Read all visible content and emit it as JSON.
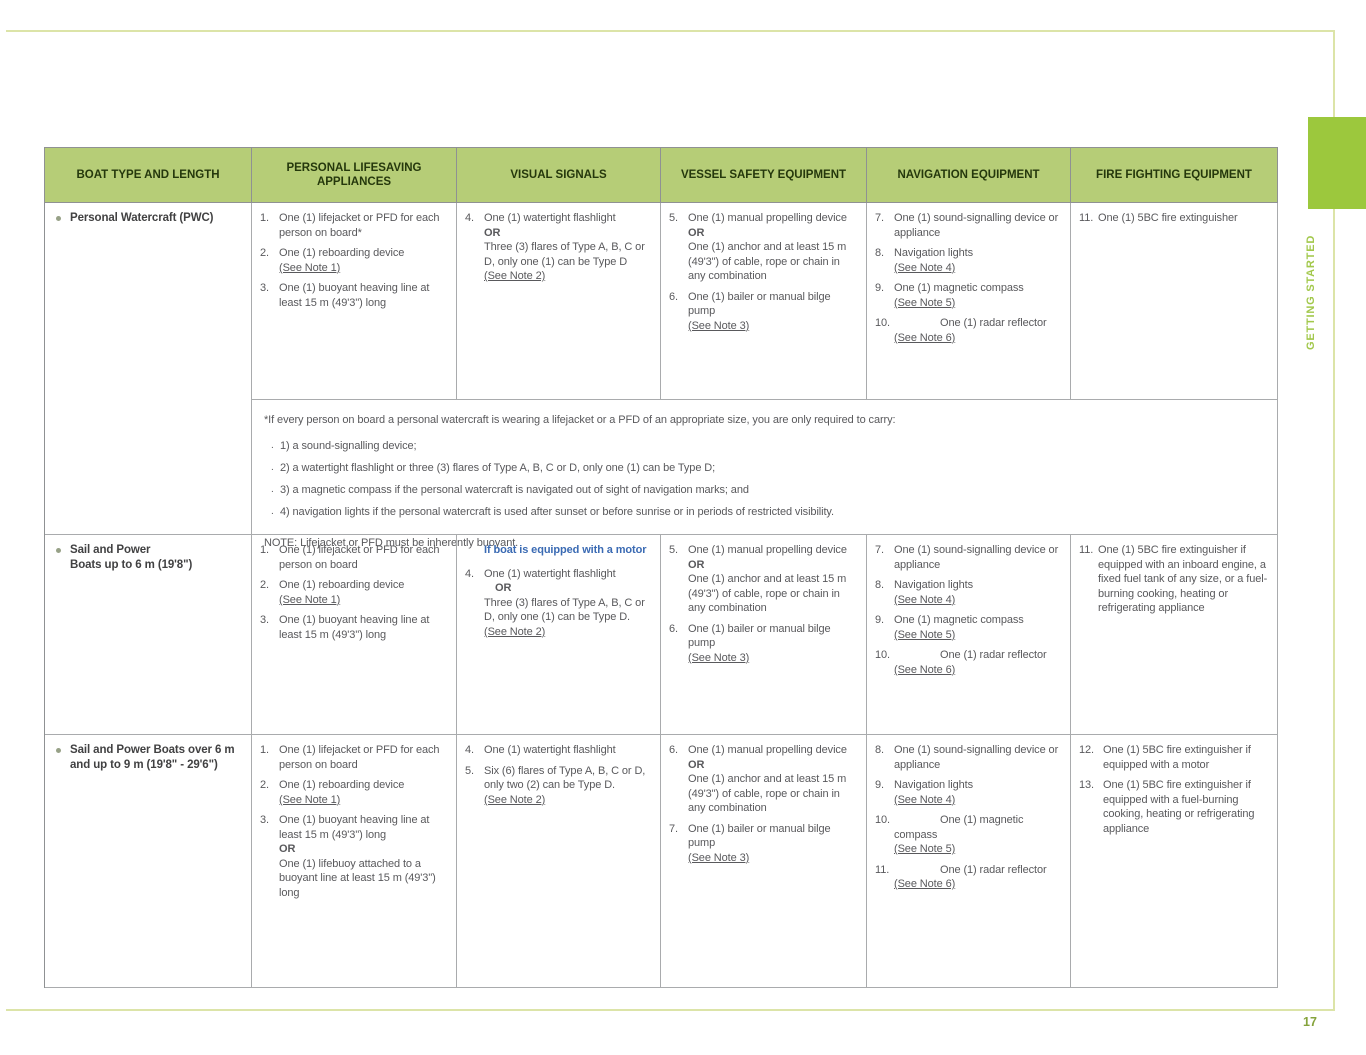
{
  "page": {
    "number": "17",
    "side_tab_label": "GETTING STARTED",
    "colors": {
      "accent_green": "#9cc83d",
      "pale_frame_line": "#dce4a8",
      "header_bg": "#b6cd77",
      "link_blue": "#3a6ab3",
      "body_text": "#59595c",
      "side_label_green": "#a2c84b"
    },
    "icons": {
      "bullet": "small-round-dot"
    }
  },
  "table": {
    "headers": [
      "BOAT TYPE AND LENGTH",
      "PERSONAL LIFESAVING APPLIANCES",
      "VISUAL SIGNALS",
      "VESSEL SAFETY EQUIPMENT",
      "NAVIGATION EQUIPMENT",
      "FIRE FIGHTING EQUIPMENT"
    ],
    "note": {
      "intro": "*If every person on board a personal watercraft is wearing a lifejacket or a PFD of an appropriate size, you are only required to carry:",
      "bullet_marker": ".",
      "bullets": [
        "1) a sound-signalling device;",
        "2) a watertight flashlight or three (3) flares of Type A, B, C or D, only one (1) can be Type D;",
        "3) a magnetic compass if the personal watercraft is navigated out of sight of navigation marks; and",
        "4) navigation lights if the personal watercraft is used after sunset or before sunrise or in periods of restricted visibility."
      ],
      "footer": "NOTE: Lifejacket or PFD must be inherently buoyant."
    },
    "rows": [
      {
        "boat_type": "Personal Watercraft (PWC)",
        "cells": {
          "lifesaving": [
            {
              "n": "1.",
              "segs": [
                {
                  "t": "One (1) lifejacket or PFD for each person on board*"
                }
              ]
            },
            {
              "n": "2.",
              "segs": [
                {
                  "t": "One (1) reboarding device"
                },
                {
                  "t": "(See Note 1)",
                  "s": "link"
                }
              ]
            },
            {
              "n": "3.",
              "segs": [
                {
                  "t": "One (1) buoyant heaving line at least 15 m (49'3\") long"
                }
              ]
            }
          ],
          "visual": [
            {
              "n": "4.",
              "segs": [
                {
                  "t": "One (1) watertight flashlight"
                },
                {
                  "t": "OR",
                  "s": "bold"
                },
                {
                  "t": "Three (3) flares of Type A, B, C or D, only one (1) can be Type D"
                },
                {
                  "t": "(See Note 2)",
                  "s": "link"
                }
              ]
            }
          ],
          "vessel": [
            {
              "n": "5.",
              "segs": [
                {
                  "t": "One (1) manual propelling device"
                },
                {
                  "t": "OR",
                  "s": "bold"
                },
                {
                  "t": "One (1) anchor and at least 15 m (49'3\") of cable, rope or chain in any combination"
                }
              ]
            },
            {
              "n": "6.",
              "segs": [
                {
                  "t": "One (1) bailer or manual bilge pump"
                },
                {
                  "t": "(See Note 3)",
                  "s": "link"
                }
              ]
            }
          ],
          "nav": [
            {
              "n": "7.",
              "segs": [
                {
                  "t": "One (1) sound-signalling device or appliance"
                }
              ]
            },
            {
              "n": "8.",
              "segs": [
                {
                  "t": "Navigation lights"
                },
                {
                  "t": "(See Note 4)",
                  "s": "link"
                }
              ]
            },
            {
              "n": "9.",
              "segs": [
                {
                  "t": "One (1) magnetic compass"
                },
                {
                  "t": "(See Note 5)",
                  "s": "link"
                }
              ]
            },
            {
              "n": "10.",
              "segs": [
                {
                  "t": "One (1) radar reflector",
                  "s": "gap"
                },
                {
                  "t": "(See Note 6)",
                  "s": "link"
                }
              ]
            }
          ],
          "fire": [
            {
              "n": "11.",
              "segs": [
                {
                  "t": "One (1) 5BC fire extinguisher"
                }
              ]
            }
          ]
        }
      },
      {
        "boat_type": "Sail and Power\nBoats up to 6 m (19'8\")",
        "cells": {
          "lifesaving": [
            {
              "n": "1.",
              "segs": [
                {
                  "t": "One (1) lifejacket or PFD for each person on board"
                }
              ]
            },
            {
              "n": "2.",
              "segs": [
                {
                  "t": "One (1) reboarding device"
                },
                {
                  "t": "(See Note 1)",
                  "s": "link"
                }
              ]
            },
            {
              "n": "3.",
              "segs": [
                {
                  "t": "One (1) buoyant heaving line at least 15 m (49'3\") long"
                }
              ]
            }
          ],
          "visual": [
            {
              "n": "",
              "segs": [
                {
                  "t": "If boat is equipped with a motor",
                  "s": "blue"
                }
              ]
            },
            {
              "n": "4.",
              "segs": [
                {
                  "t": "One (1) watertight flashlight"
                },
                {
                  "t": "OR",
                  "s": "ind"
                },
                {
                  "t": "Three (3) flares of Type A, B, C or D, only one (1) can be Type D."
                },
                {
                  "t": "(See Note 2)",
                  "s": "link"
                }
              ]
            }
          ],
          "vessel": [
            {
              "n": "5.",
              "segs": [
                {
                  "t": "One (1) manual propelling device"
                },
                {
                  "t": "OR",
                  "s": "bold"
                },
                {
                  "t": "One (1) anchor and at least 15 m (49'3\") of cable, rope or chain in any combination"
                }
              ]
            },
            {
              "n": "6.",
              "segs": [
                {
                  "t": "One (1) bailer or manual bilge pump"
                },
                {
                  "t": "(See Note 3)",
                  "s": "link"
                }
              ]
            }
          ],
          "nav": [
            {
              "n": "7.",
              "segs": [
                {
                  "t": "One (1) sound-signalling device or appliance"
                }
              ]
            },
            {
              "n": "8.",
              "segs": [
                {
                  "t": "Navigation lights"
                },
                {
                  "t": "(See Note 4)",
                  "s": "link"
                }
              ]
            },
            {
              "n": "9.",
              "segs": [
                {
                  "t": "One (1) magnetic compass"
                },
                {
                  "t": "(See Note 5)",
                  "s": "link"
                }
              ]
            },
            {
              "n": "10.",
              "segs": [
                {
                  "t": "One (1) radar reflector",
                  "s": "gap"
                },
                {
                  "t": "(See Note 6)",
                  "s": "link"
                }
              ]
            }
          ],
          "fire": [
            {
              "n": "11.",
              "segs": [
                {
                  "t": "One (1) 5BC fire extinguisher if equipped with an inboard engine, a fixed fuel tank of any size, or a fuel-burning cooking, heating or refrigerating appliance"
                }
              ]
            }
          ]
        }
      },
      {
        "boat_type": "Sail and Power Boats over 6 m and up to 9 m (19'8\" - 29'6\")",
        "cells": {
          "lifesaving": [
            {
              "n": "1.",
              "segs": [
                {
                  "t": "One (1) lifejacket or PFD for each person on board"
                }
              ]
            },
            {
              "n": "2.",
              "segs": [
                {
                  "t": "One (1) reboarding device"
                },
                {
                  "t": "(See Note 1)",
                  "s": "link"
                }
              ]
            },
            {
              "n": "3.",
              "segs": [
                {
                  "t": "One (1) buoyant heaving line at least 15 m (49'3\") long"
                },
                {
                  "t": "OR",
                  "s": "bold"
                },
                {
                  "t": "One (1) lifebuoy attached to a buoyant line at least 15 m (49'3\") long"
                }
              ]
            }
          ],
          "visual": [
            {
              "n": "4.",
              "segs": [
                {
                  "t": "One (1) watertight flashlight"
                }
              ]
            },
            {
              "n": "5.",
              "segs": [
                {
                  "t": "Six (6) flares of Type A, B, C or D, only two (2) can be Type D."
                },
                {
                  "t": "(See Note 2)",
                  "s": "link"
                }
              ]
            }
          ],
          "vessel": [
            {
              "n": "6.",
              "segs": [
                {
                  "t": "One (1) manual propelling device"
                },
                {
                  "t": "OR",
                  "s": "bold"
                },
                {
                  "t": "One (1) anchor and at least 15 m (49'3\") of cable, rope or chain in any combination"
                }
              ]
            },
            {
              "n": "7.",
              "segs": [
                {
                  "t": "One (1) bailer or manual bilge pump"
                },
                {
                  "t": "(See Note 3)",
                  "s": "link"
                }
              ]
            }
          ],
          "nav": [
            {
              "n": "8.",
              "segs": [
                {
                  "t": "One (1) sound-signalling device or appliance"
                }
              ]
            },
            {
              "n": "9.",
              "segs": [
                {
                  "t": "Navigation lights"
                },
                {
                  "t": "(See Note 4)",
                  "s": "link"
                }
              ]
            },
            {
              "n": "10.",
              "segs": [
                {
                  "t": "One (1) magnetic compass",
                  "s": "gap"
                },
                {
                  "t": "(See Note 5)",
                  "s": "link"
                }
              ]
            },
            {
              "n": "11.",
              "segs": [
                {
                  "t": "One (1) radar reflector",
                  "s": "gap"
                },
                {
                  "t": "(See Note 6)",
                  "s": "link"
                }
              ]
            }
          ],
          "fire": [
            {
              "n": "12.",
              "segs": [
                {
                  "t": "One (1) 5BC fire extinguisher if equipped with a motor"
                }
              ]
            },
            {
              "n": "13.",
              "segs": [
                {
                  "t": "One (1) 5BC fire extinguisher if equipped with a fuel-burning cooking, heating or refrigerating appliance"
                }
              ]
            }
          ]
        }
      }
    ]
  }
}
